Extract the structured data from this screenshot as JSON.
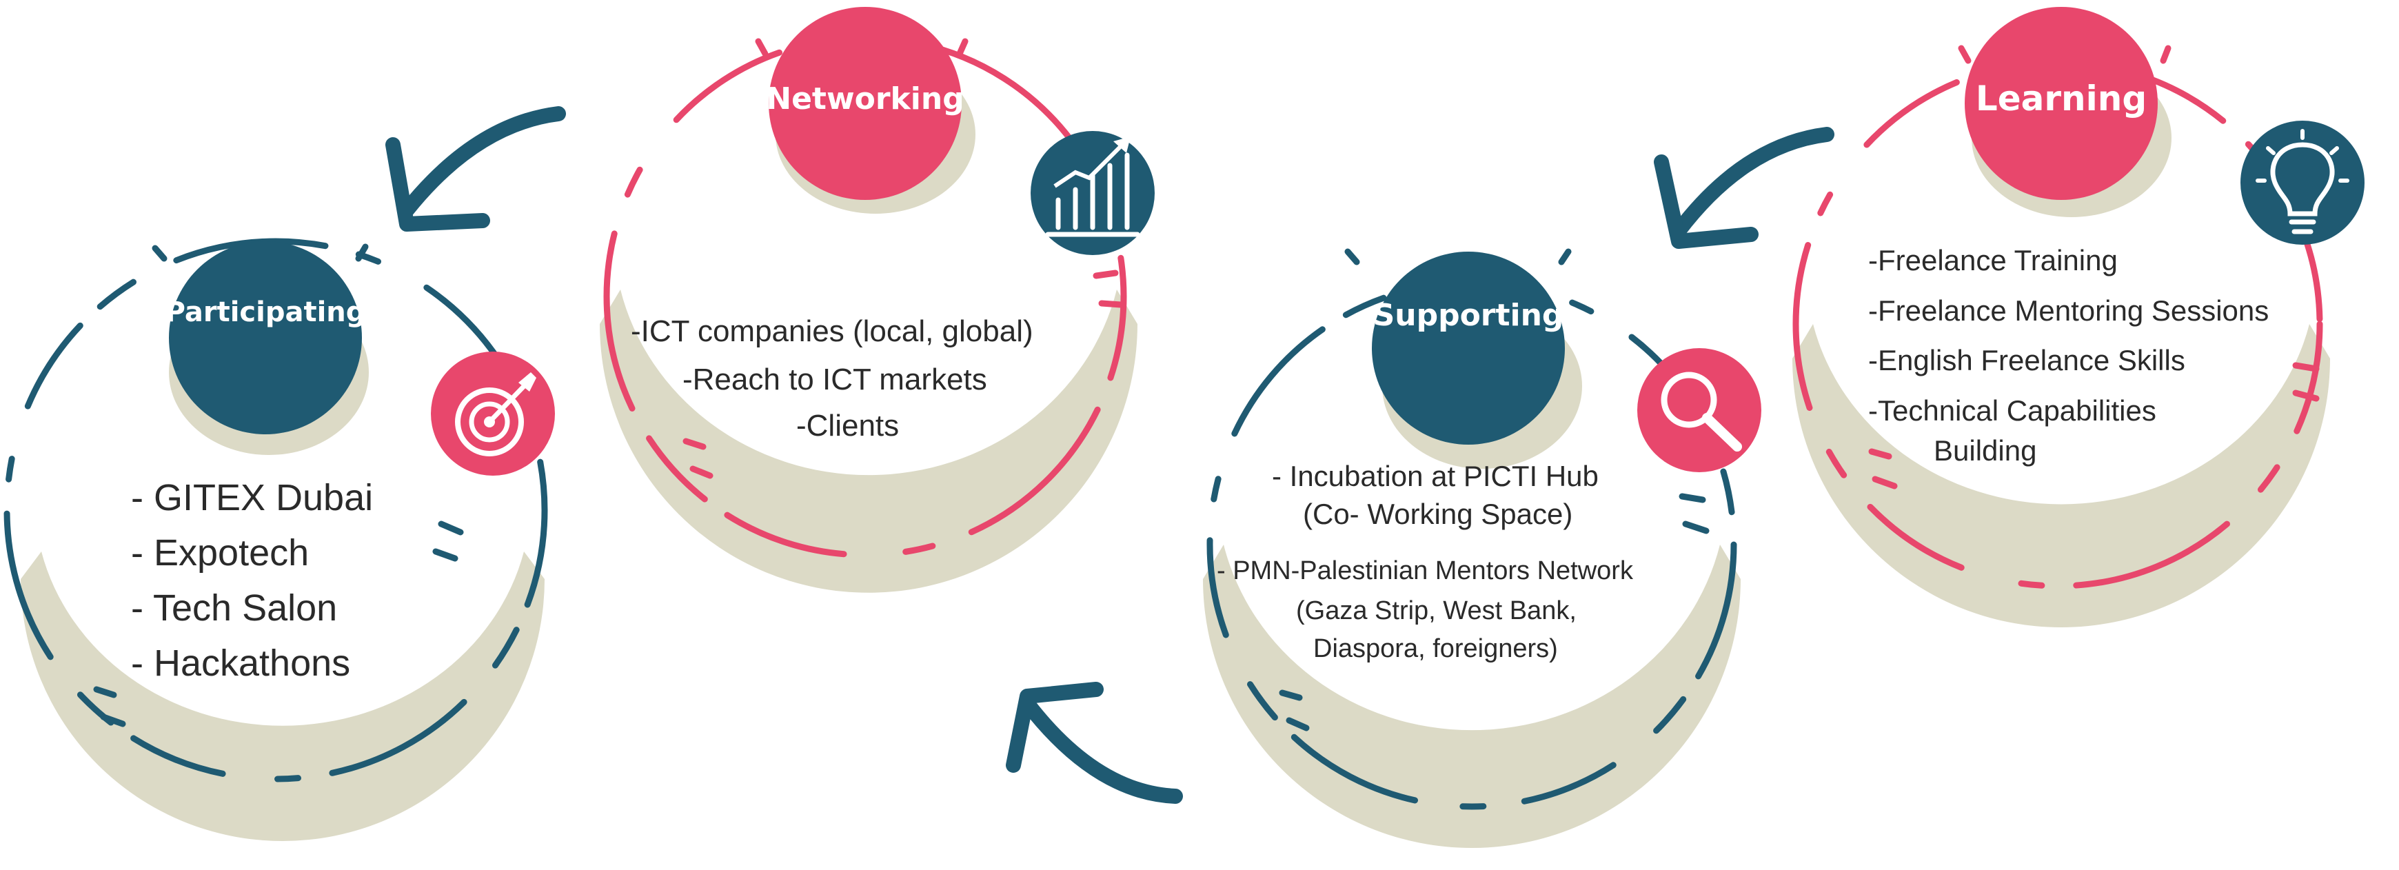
{
  "colors": {
    "pink": "#e8476c",
    "teal": "#1f5a72",
    "beige": "#dcdac6",
    "text": "#2a2a2a",
    "white": "#ffffff"
  },
  "stages": [
    {
      "id": "participating",
      "title": "Participating",
      "color": "teal",
      "icon": "target-icon",
      "items": [
        "- GITEX Dubai",
        "- Expotech",
        "- Tech Salon",
        "- Hackathons"
      ]
    },
    {
      "id": "networking",
      "title": "Networking",
      "color": "pink",
      "icon": "growth-chart-icon",
      "items": [
        "-ICT companies (local, global)",
        "-Reach to ICT markets",
        "-Clients"
      ]
    },
    {
      "id": "supporting",
      "title": "Supporting",
      "color": "teal",
      "icon": "magnifier-icon",
      "items": [
        "- Incubation at PICTI Hub",
        "(Co- Working Space)",
        "- PMN-Palestinian Mentors Network",
        "(Gaza Strip, West Bank,",
        "Diaspora, foreigners)"
      ]
    },
    {
      "id": "learning",
      "title": "Learning",
      "color": "pink",
      "icon": "lightbulb-icon",
      "items": [
        "-Freelance Training",
        "-Freelance Mentoring Sessions",
        "-English Freelance Skills",
        "-Technical Capabilities",
        "Building"
      ]
    }
  ]
}
